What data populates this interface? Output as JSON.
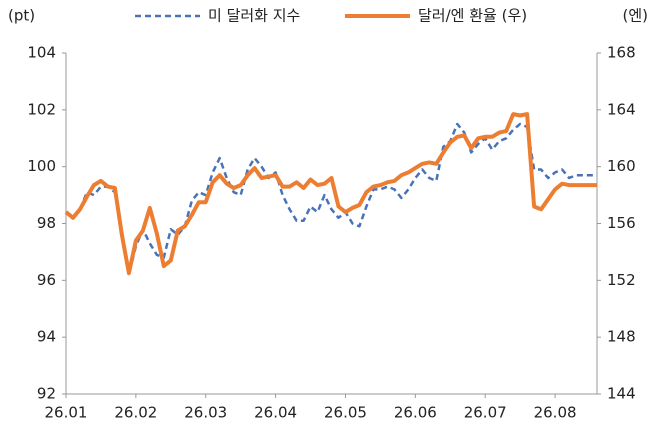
{
  "chart_data": {
    "type": "line",
    "y_label": "(pt)",
    "y2_label": "(엔)",
    "x": [
      1.0,
      1.1,
      1.2,
      1.3,
      1.4,
      1.5,
      1.6,
      1.7,
      1.8,
      1.9,
      2.0,
      2.1,
      2.2,
      2.3,
      2.4,
      2.5,
      2.6,
      2.7,
      2.8,
      2.9,
      3.0,
      3.1,
      3.2,
      3.3,
      3.4,
      3.5,
      3.6,
      3.7,
      3.8,
      3.9,
      4.0,
      4.1,
      4.2,
      4.3,
      4.4,
      4.5,
      4.6,
      4.7,
      4.8,
      4.9,
      5.0,
      5.1,
      5.2,
      5.3,
      5.4,
      5.5,
      5.6,
      5.7,
      5.8,
      5.9,
      6.0,
      6.1,
      6.2,
      6.3,
      6.4,
      6.5,
      6.6,
      6.7,
      6.8,
      6.9,
      7.0,
      7.1,
      7.2,
      7.3,
      7.4,
      7.5,
      7.6,
      7.7,
      7.8,
      7.9,
      8.0,
      8.1,
      8.2,
      8.3,
      8.4,
      8.5,
      8.6
    ],
    "xlim": [
      1,
      8.6
    ],
    "xticks": [
      {
        "value": 1,
        "label": "26.01"
      },
      {
        "value": 2,
        "label": "26.02"
      },
      {
        "value": 3,
        "label": "26.03"
      },
      {
        "value": 4,
        "label": "26.04"
      },
      {
        "value": 5,
        "label": "26.05"
      },
      {
        "value": 6,
        "label": "26.06"
      },
      {
        "value": 7,
        "label": "26.07"
      },
      {
        "value": 8,
        "label": "26.08"
      }
    ],
    "ylim": [
      92,
      104
    ],
    "yticks": [
      92,
      94,
      96,
      98,
      100,
      102,
      104
    ],
    "y2lim": [
      144,
      168
    ],
    "y2ticks": [
      144,
      148,
      152,
      156,
      160,
      164,
      168
    ],
    "series": [
      {
        "name": "미 달러화 지수",
        "color": "#4a72b8",
        "dash": true,
        "values": [
          98.4,
          98.2,
          98.5,
          99.1,
          99.0,
          99.3,
          99.3,
          99.1,
          97.5,
          96.2,
          97.2,
          97.8,
          97.3,
          96.9,
          96.8,
          97.8,
          97.6,
          97.9,
          98.8,
          99.1,
          99.0,
          99.8,
          100.3,
          99.6,
          99.1,
          99.0,
          99.9,
          100.3,
          100.0,
          99.6,
          99.8,
          99.0,
          98.5,
          98.1,
          98.1,
          98.6,
          98.4,
          99.0,
          98.5,
          98.2,
          98.4,
          98.0,
          97.9,
          98.6,
          99.2,
          99.2,
          99.3,
          99.2,
          98.9,
          99.2,
          99.6,
          99.9,
          99.6,
          99.5,
          100.7,
          100.9,
          101.5,
          101.2,
          100.5,
          100.8,
          101.0,
          100.6,
          100.9,
          101.0,
          101.3,
          101.5,
          101.4,
          99.9,
          99.9,
          99.6,
          99.8,
          99.9,
          99.6,
          99.7,
          99.7,
          99.7,
          99.7
        ]
      },
      {
        "name": "달러/엔 환율 (우)",
        "color": "#ed7d31",
        "axis": "y2",
        "values": [
          156.8,
          156.4,
          157.0,
          157.9,
          158.7,
          159.0,
          158.6,
          158.5,
          155.2,
          152.5,
          154.8,
          155.5,
          157.1,
          155.3,
          153.0,
          153.4,
          155.5,
          155.8,
          156.6,
          157.5,
          157.5,
          158.9,
          159.4,
          158.8,
          158.5,
          158.7,
          159.4,
          159.9,
          159.2,
          159.3,
          159.4,
          158.6,
          158.6,
          158.9,
          158.5,
          159.1,
          158.7,
          158.8,
          159.2,
          157.2,
          156.8,
          157.1,
          157.3,
          158.2,
          158.6,
          158.7,
          158.9,
          159.0,
          159.4,
          159.6,
          159.9,
          160.2,
          160.3,
          160.2,
          161.0,
          161.7,
          162.1,
          162.2,
          161.3,
          162.0,
          162.1,
          162.1,
          162.4,
          162.5,
          163.7,
          163.6,
          163.7,
          157.2,
          157.0,
          157.7,
          158.4,
          158.8,
          158.7,
          158.7,
          158.7,
          158.7,
          158.7
        ]
      }
    ]
  }
}
